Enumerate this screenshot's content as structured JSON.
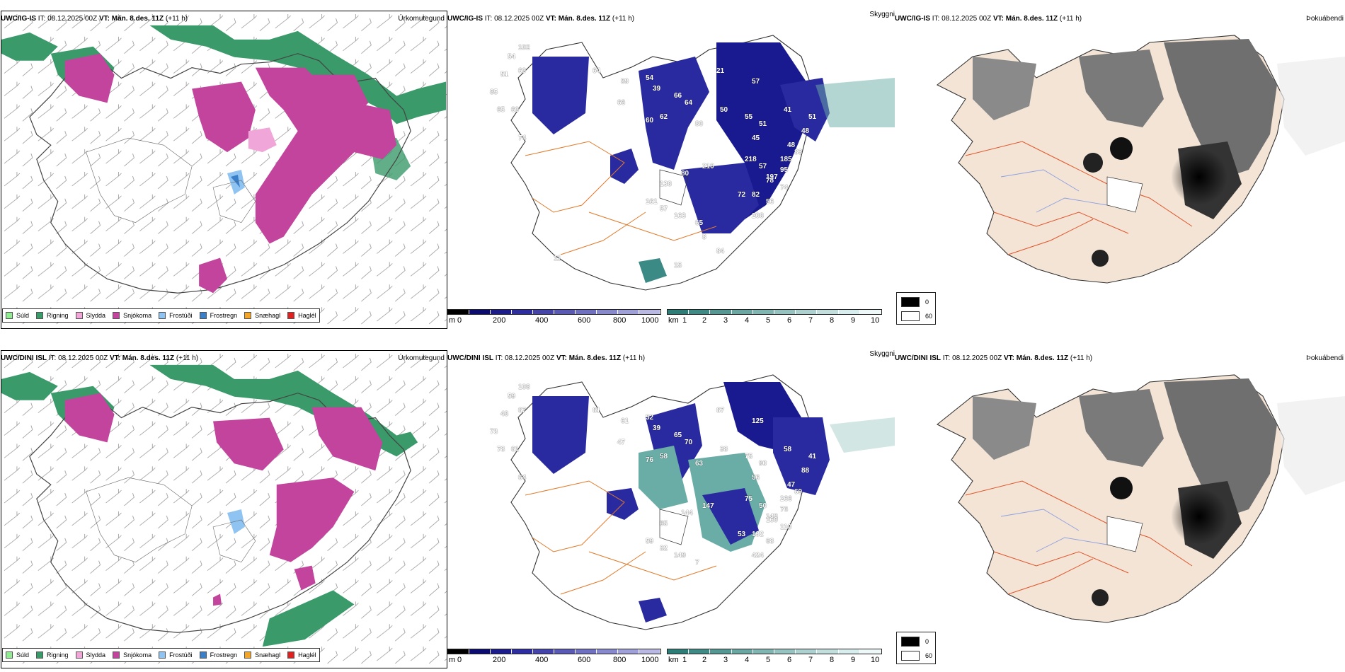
{
  "rows": [
    {
      "model": "UWC/IG-IS",
      "run_label": "IT:",
      "run": "08.12.2025 00Z",
      "valid_label": "VT:",
      "valid": "Mán. 8.des. 11Z",
      "lead": "(+11 h)",
      "panels": {
        "precip": "Úrkomutegund",
        "visibility": "Skyggni",
        "fog": "Þokuábendi"
      },
      "vis_labels": [
        "102",
        "54",
        "51",
        "60",
        "85",
        "65",
        "60",
        "74",
        "64",
        "54",
        "59",
        "39",
        "66",
        "60",
        "62",
        "66",
        "64",
        "80",
        "21",
        "57",
        "50",
        "55",
        "51",
        "45",
        "41",
        "48",
        "95",
        "74",
        "56",
        "208",
        "197",
        "185",
        "83",
        "48",
        "51",
        "218",
        "57",
        "78",
        "72",
        "82",
        "210",
        "80",
        "138",
        "161",
        "57",
        "163",
        "65",
        "8",
        "84",
        "15",
        "11"
      ]
    },
    {
      "model": "UWC/DINI ISL",
      "run_label": "IT:",
      "run": "08.12.2025 00Z",
      "valid_label": "VT:",
      "valid": "Mán. 8.des. 11Z",
      "lead": "(+11 h)",
      "panels": {
        "precip": "Úrkomutegund",
        "visibility": "Skyggni",
        "fog": "Þokuábendi"
      },
      "vis_labels": [
        "108",
        "59",
        "48",
        "67",
        "73",
        "78",
        "61",
        "64",
        "61",
        "52",
        "61",
        "39",
        "47",
        "76",
        "58",
        "65",
        "70",
        "63",
        "67",
        "125",
        "38",
        "75",
        "90",
        "56",
        "58",
        "47",
        "76",
        "110",
        "68",
        "424",
        "143",
        "266",
        "69",
        "88",
        "41",
        "75",
        "50",
        "160",
        "53",
        "132",
        "147",
        "144",
        "65",
        "59",
        "32",
        "149",
        "7"
      ]
    }
  ],
  "precip_legend": [
    {
      "label": "Súld",
      "color": "#8fec8f"
    },
    {
      "label": "Rigning",
      "color": "#3a9a6a"
    },
    {
      "label": "Slydda",
      "color": "#f0a6d9"
    },
    {
      "label": "Snjókoma",
      "color": "#c2449c"
    },
    {
      "label": "Frostúði",
      "color": "#8fc3f2"
    },
    {
      "label": "Frostregn",
      "color": "#3a7fc9"
    },
    {
      "label": "Snæhagl",
      "color": "#f0a62a"
    },
    {
      "label": "Haglél",
      "color": "#e32020"
    }
  ],
  "elevation_bar": {
    "unit": "m",
    "ticks": [
      "0",
      "200",
      "400",
      "600",
      "800",
      "1000"
    ]
  },
  "visibility_bar": {
    "unit": "km",
    "ticks": [
      "1",
      "2",
      "3",
      "4",
      "5",
      "6",
      "7",
      "8",
      "9",
      "10"
    ]
  },
  "fog_legend": {
    "black": "0",
    "white": "60"
  }
}
